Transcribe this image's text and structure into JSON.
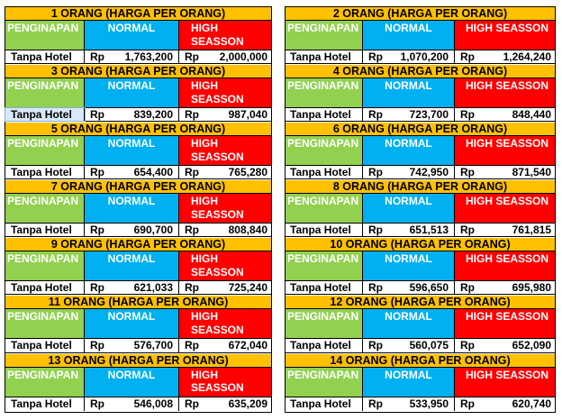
{
  "header_labels": {
    "penginapan": "PENGINAPAN",
    "normal": "NORMAL",
    "high_season": "HIGH SEASSON",
    "high_season_wrapped_1": "HIGH",
    "high_season_wrapped_2": "SEASSON",
    "row_label": "Tanpa Hotel",
    "currency": "Rp"
  },
  "colors": {
    "title_bg": "#ffc000",
    "penginapan_bg": "#92d050",
    "normal_bg": "#00b0f0",
    "high_season_bg": "#ff0000"
  },
  "left": [
    {
      "title": "1 ORANG (HARGA PER ORANG)",
      "normal": "1,763,200",
      "high": "2,000,000"
    },
    {
      "title": "3 ORANG (HARGA PER ORANG)",
      "normal": "839,200",
      "high": "987,040"
    },
    {
      "title": "5 ORANG (HARGA PER ORANG)",
      "normal": "654,400",
      "high": "765,280"
    },
    {
      "title": "7 ORANG (HARGA PER ORANG)",
      "normal": "690,700",
      "high": "808,840"
    },
    {
      "title": "9 ORANG (HARGA PER ORANG)",
      "normal": "621,033",
      "high": "725,240"
    },
    {
      "title": "11 ORANG (HARGA PER ORANG)",
      "normal": "576,700",
      "high": "672,040"
    },
    {
      "title": "13 ORANG (HARGA PER ORANG)",
      "normal": "546,008",
      "high": "635,209"
    }
  ],
  "right": [
    {
      "title": "2 ORANG (HARGA PER ORANG)",
      "normal": "1,070,200",
      "high": "1,264,240"
    },
    {
      "title": "4 ORANG (HARGA PER ORANG)",
      "normal": "723,700",
      "high": "848,440"
    },
    {
      "title": "6 ORANG (HARGA PER ORANG)",
      "normal": "742,950",
      "high": "871,540"
    },
    {
      "title": "8 ORANG (HARGA PER ORANG)",
      "normal": "651,513",
      "high": "761,815"
    },
    {
      "title": "10 ORANG (HARGA PER ORANG)",
      "normal": "596,650",
      "high": "695,980"
    },
    {
      "title": "12 ORANG (HARGA PER ORANG)",
      "normal": "560,075",
      "high": "652,090"
    },
    {
      "title": "14 ORANG (HARGA PER ORANG)",
      "normal": "533,950",
      "high": "620,740"
    }
  ]
}
